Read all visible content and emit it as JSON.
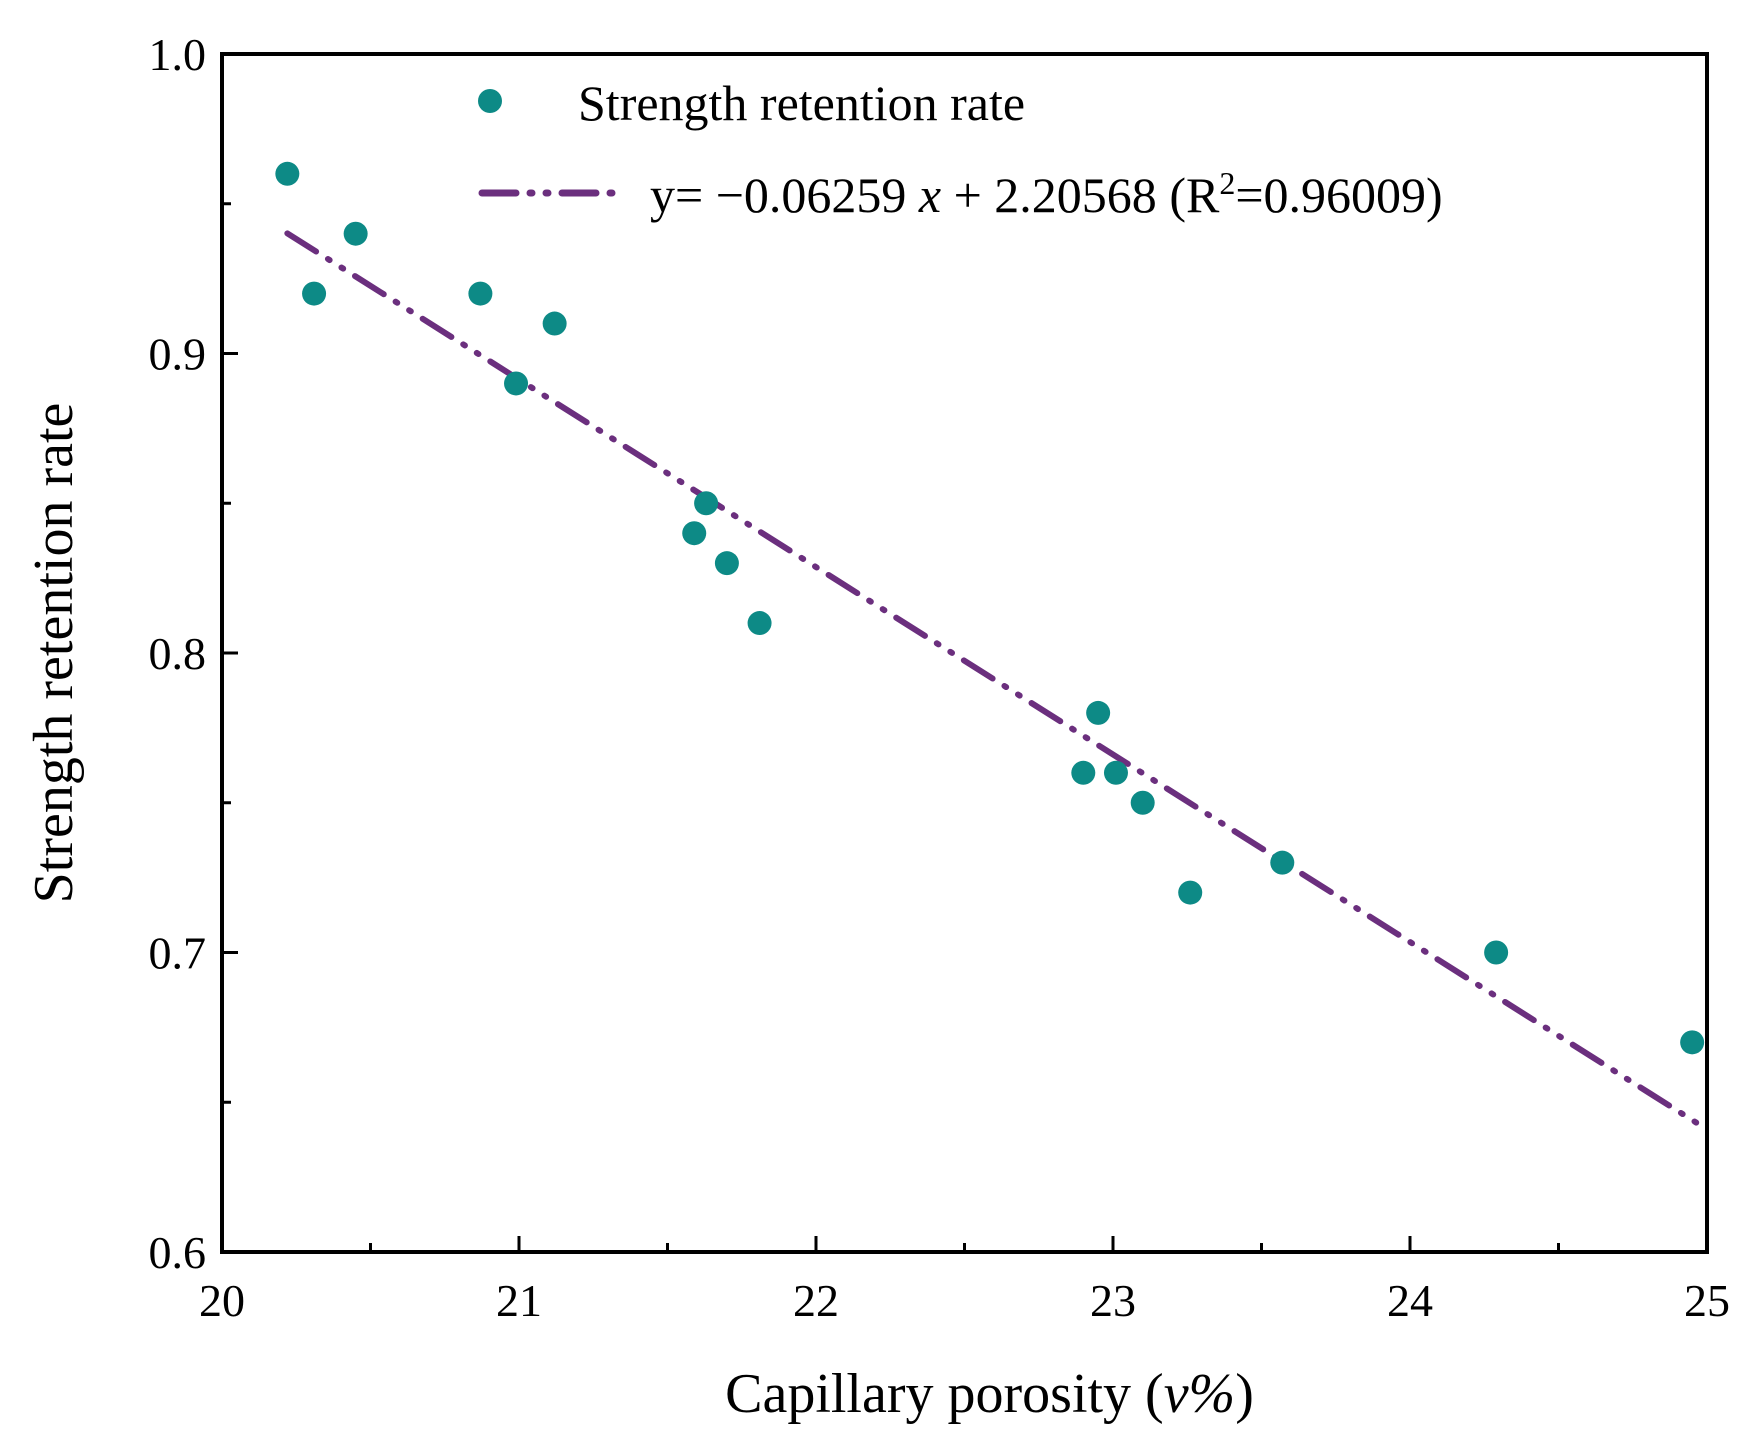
{
  "chart_data": {
    "type": "scatter",
    "title": "",
    "xlabel": "Capillary porosity (",
    "xlabel_italic": "v%",
    "xlabel_end": ")",
    "ylabel": "Strength retention rate",
    "xlim": [
      20,
      25
    ],
    "ylim": [
      0.6,
      1.0
    ],
    "xticks": [
      20,
      21,
      22,
      23,
      24,
      25
    ],
    "xtick_labels": [
      "20",
      "21",
      "22",
      "23",
      "24",
      "25"
    ],
    "yticks": [
      0.6,
      0.7,
      0.8,
      0.9,
      1.0
    ],
    "ytick_labels": [
      "0.6",
      "0.7",
      "0.8",
      "0.9",
      "1.0"
    ],
    "x_minor_step": 0.5,
    "y_minor_step": 0.05,
    "grid": false,
    "legend_position": "top",
    "series": [
      {
        "name": "Strength retention rate",
        "kind": "scatter",
        "color": "#0d8a86",
        "x": [
          20.22,
          20.31,
          20.45,
          20.87,
          20.99,
          21.12,
          21.59,
          21.63,
          21.7,
          21.81,
          22.9,
          22.95,
          23.01,
          23.1,
          23.26,
          23.57,
          24.29,
          24.95
        ],
        "y": [
          0.96,
          0.92,
          0.94,
          0.92,
          0.89,
          0.91,
          0.84,
          0.85,
          0.83,
          0.81,
          0.76,
          0.78,
          0.76,
          0.75,
          0.72,
          0.73,
          0.7,
          0.67
        ]
      },
      {
        "name": "y= −0.06259 x + 2.20568",
        "kind": "fit_line",
        "color": "#6b2f7e",
        "slope": -0.06259,
        "intercept": 2.20568,
        "x_range": [
          20.22,
          24.97
        ],
        "legend_label": {
          "prefix": "y= −",
          "coef": "0.06259",
          "var": "x",
          "suffix": " + 2.20568",
          "r2_open": "(R",
          "r2_sup": "2",
          "r2_close": "=0.96009)"
        }
      }
    ]
  }
}
